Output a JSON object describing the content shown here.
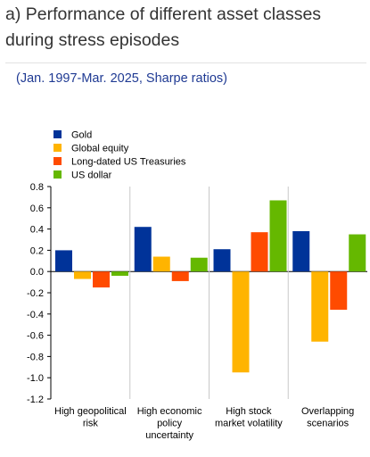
{
  "title": "a) Performance of different asset classes during stress episodes",
  "subtitle": "(Jan. 1997-Mar. 2025, Sharpe ratios)",
  "chart_data": {
    "type": "bar",
    "categories": [
      [
        "High geopolitical",
        "risk"
      ],
      [
        "High economic",
        "policy",
        "uncertainty"
      ],
      [
        "High stock",
        "market volatility"
      ],
      [
        "Overlapping",
        "scenarios"
      ]
    ],
    "series": [
      {
        "name": "Gold",
        "color": "#003399",
        "values": [
          0.2,
          0.42,
          0.21,
          0.38
        ]
      },
      {
        "name": "Global equity",
        "color": "#ffb400",
        "values": [
          -0.07,
          0.14,
          -0.95,
          -0.66
        ]
      },
      {
        "name": "Long-dated US Treasuries",
        "color": "#ff4b00",
        "values": [
          -0.15,
          -0.09,
          0.37,
          -0.36
        ]
      },
      {
        "name": "US dollar",
        "color": "#65b800",
        "values": [
          -0.04,
          0.13,
          0.67,
          0.35
        ]
      }
    ],
    "ylim": [
      -1.2,
      0.8
    ],
    "yticks": [
      "0.8",
      "0.6",
      "0.4",
      "0.2",
      "0.0",
      "-0.2",
      "-0.4",
      "-0.6",
      "-0.8",
      "-1.0",
      "-1.2"
    ],
    "legend_position": "top-left",
    "grid": false
  }
}
